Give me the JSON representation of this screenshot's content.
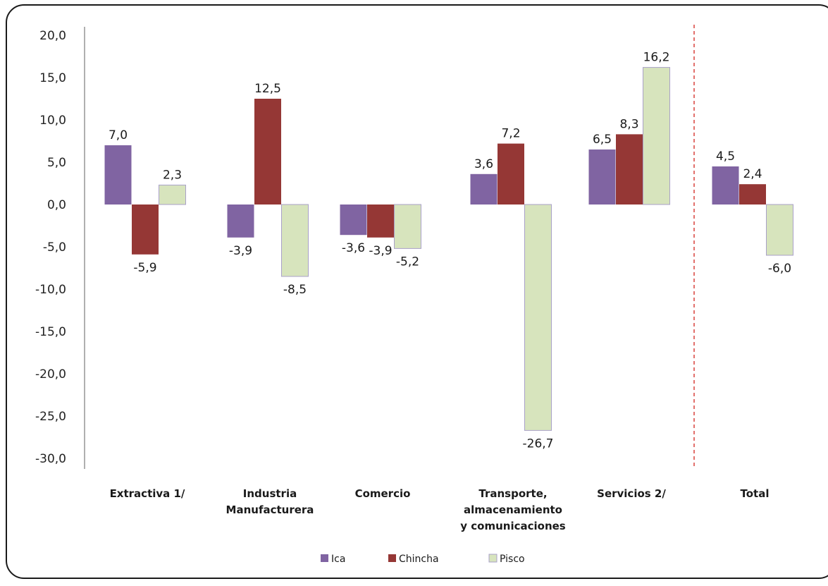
{
  "chart_data": {
    "type": "bar",
    "title": "",
    "xlabel": "",
    "ylabel": "",
    "ylim": [
      -30,
      20
    ],
    "yticks": [
      "20,0",
      "15,0",
      "10,0",
      "5,0",
      "0,0",
      "-5,0",
      "-10,0",
      "-15,0",
      "-20,0",
      "-25,0",
      "-30,0"
    ],
    "categories": [
      [
        "Extractiva 1/"
      ],
      [
        "Industria",
        "Manufacturera"
      ],
      [
        "Comercio"
      ],
      [
        "Transporte,",
        "almacenamiento",
        "y comunicaciones"
      ],
      [
        "Servicios  2/"
      ],
      [
        "Total"
      ]
    ],
    "series": [
      {
        "name": "Ica",
        "color": "#8064a2",
        "values": [
          7.0,
          -3.9,
          -3.6,
          3.6,
          6.5,
          4.5
        ],
        "labels": [
          "7,0",
          "-3,9",
          "-3,6",
          "3,6",
          "6,5",
          "4,5"
        ]
      },
      {
        "name": "Chincha",
        "color": "#953735",
        "values": [
          -5.9,
          12.5,
          -3.9,
          7.2,
          8.3,
          2.4
        ],
        "labels": [
          "-5,9",
          "12,5",
          "-3,9",
          "7,2",
          "8,3",
          "2,4"
        ]
      },
      {
        "name": "Pisco",
        "color": "#d7e4bd",
        "values": [
          2.3,
          -8.5,
          -5.2,
          -26.7,
          16.2,
          -6.0
        ],
        "labels": [
          "2,3",
          "-8,5",
          "-5,2",
          "-26,7",
          "16,2",
          "-6,0"
        ]
      }
    ],
    "grid": false,
    "legend_position": "bottom",
    "separator_before": "Total"
  }
}
